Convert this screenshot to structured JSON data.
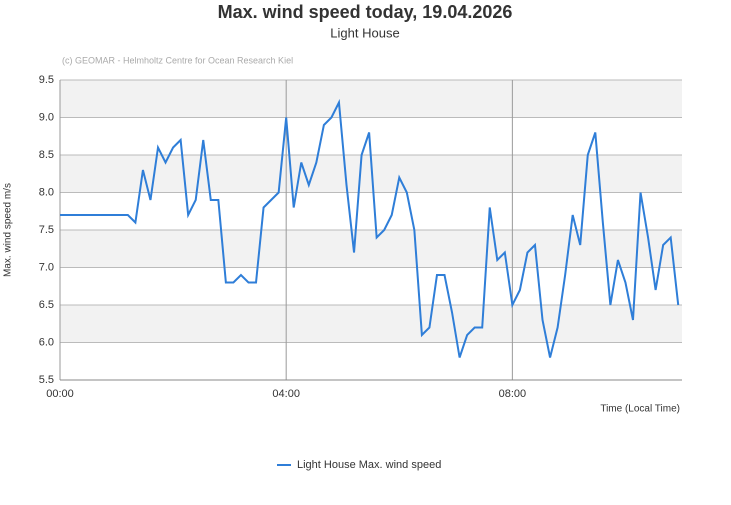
{
  "chart_data": {
    "type": "line",
    "title": "Max. wind speed today, 19.04.2026",
    "subtitle": "Light House",
    "credit": "(c) GEOMAR - Helmholtz Centre for Ocean Research Kiel",
    "y_label": "Max. wind speed m/s",
    "x_label": "Time (Local Time)",
    "x": [
      0,
      8,
      16,
      24,
      32,
      40,
      48,
      56,
      64,
      72,
      80,
      88,
      96,
      104,
      112,
      120,
      128,
      136,
      144,
      152,
      160,
      168,
      176,
      184,
      192,
      200,
      208,
      216,
      224,
      232,
      240,
      248,
      256,
      264,
      272,
      280,
      288,
      296,
      304,
      312,
      320,
      328,
      336,
      344,
      352,
      360,
      368,
      376,
      384,
      392,
      400,
      408,
      416,
      424,
      432,
      440,
      448,
      456,
      464,
      472,
      480,
      488,
      496,
      504,
      512,
      520,
      528,
      536,
      544,
      552,
      560,
      568,
      576,
      584,
      592,
      600,
      608,
      616,
      624,
      632,
      640,
      648,
      656
    ],
    "series": [
      {
        "name": "Light House Max. wind speed",
        "color": "#2f7ed8",
        "values": [
          7.7,
          7.7,
          7.7,
          7.7,
          7.7,
          7.7,
          7.7,
          7.7,
          7.7,
          7.7,
          7.6,
          8.3,
          7.9,
          8.6,
          8.4,
          8.6,
          8.7,
          7.7,
          7.9,
          8.7,
          7.9,
          7.9,
          6.8,
          6.8,
          6.9,
          6.8,
          6.8,
          7.8,
          7.9,
          8.0,
          9.0,
          7.8,
          8.4,
          8.1,
          8.4,
          8.9,
          9.0,
          9.2,
          8.1,
          7.2,
          8.5,
          8.8,
          7.4,
          7.5,
          7.7,
          8.2,
          8.0,
          7.5,
          6.1,
          6.2,
          6.9,
          6.9,
          6.4,
          5.8,
          6.1,
          6.2,
          6.2,
          7.8,
          7.1,
          7.2,
          6.5,
          6.7,
          7.2,
          7.3,
          6.3,
          5.8,
          6.2,
          6.9,
          7.7,
          7.3,
          8.5,
          8.8,
          7.6,
          6.5,
          7.1,
          6.8,
          6.3,
          8.0,
          7.4,
          6.7,
          7.3,
          7.4,
          6.5
        ]
      }
    ],
    "xlim": [
      0,
      660
    ],
    "xticks": [
      {
        "value": 0,
        "label": "00:00"
      },
      {
        "value": 240,
        "label": "04:00"
      },
      {
        "value": 480,
        "label": "08:00"
      }
    ],
    "ylim": [
      5.5,
      9.5
    ],
    "yticks": [
      5.5,
      {
        "value": 6,
        "label": "6.0"
      },
      6.5,
      {
        "value": 7,
        "label": "7.0"
      },
      7.5,
      {
        "value": 8,
        "label": "8.0"
      },
      8.5,
      {
        "value": 9,
        "label": "9.0"
      },
      9.5
    ],
    "grid": true,
    "legend": "bottom"
  }
}
